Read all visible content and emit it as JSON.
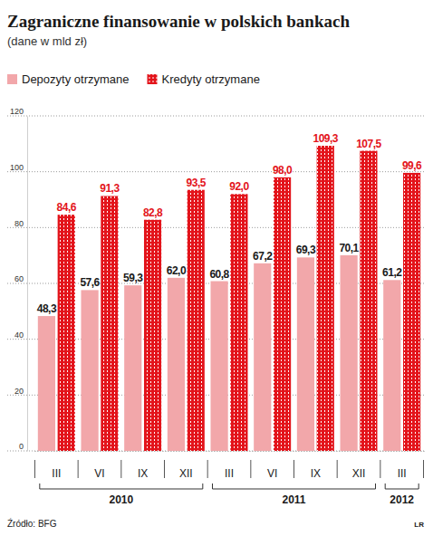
{
  "chart_data": {
    "type": "bar",
    "title": "Zagraniczne finansowanie w polskich bankach",
    "subtitle": "(dane w mld zł)",
    "categories": [
      "III",
      "VI",
      "IX",
      "XII",
      "III",
      "VI",
      "IX",
      "XII",
      "III"
    ],
    "groups": [
      {
        "label": "2010",
        "count": 4
      },
      {
        "label": "2011",
        "count": 4
      },
      {
        "label": "2012",
        "count": 1
      }
    ],
    "series": [
      {
        "name": "Depozyty otrzymane",
        "color": "#f2a7aa",
        "values": [
          48.3,
          57.6,
          59.3,
          62.0,
          60.8,
          67.2,
          69.3,
          70.1,
          61.2
        ],
        "value_labels": [
          "48,3",
          "57,6",
          "59,3",
          "62,0",
          "60,8",
          "67,2",
          "69,3",
          "70,1",
          "61,2"
        ]
      },
      {
        "name": "Kredyty otrzymane",
        "color": "#e3141b",
        "values": [
          84.6,
          91.3,
          82.8,
          93.5,
          92.0,
          98.0,
          109.3,
          107.5,
          99.6
        ],
        "value_labels": [
          "84,6",
          "91,3",
          "82,8",
          "93,5",
          "92,0",
          "98,0",
          "109,3",
          "107,5",
          "99,6"
        ]
      }
    ],
    "ylim": [
      0,
      120
    ],
    "yticks": [
      0,
      20,
      40,
      60,
      80,
      100,
      120
    ],
    "grid": true,
    "data_labels": true,
    "legend": "top-left",
    "source": "Źródło: BFG",
    "credit": "LR"
  }
}
